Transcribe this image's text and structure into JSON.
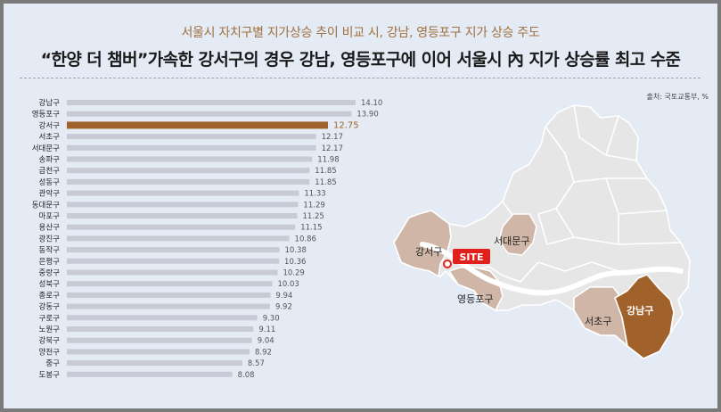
{
  "subtitle": "서울시 자치구별 지가상승 추이 비교 시, 강남, 영등포구 지가 상승 주도",
  "headline": "“한양 더 챔버”가속한 강서구의 경우 강남, 영등포구에 이어 서울시 內 지가 상승률 최고 수준",
  "source": "출처: 국토교통부, %",
  "colors": {
    "bar": "#c8cbd6",
    "highlight": "#a0612a",
    "map_base": "#e6e6e6",
    "map_highlight": "#a0612a",
    "map_tint": "#cfb6a7",
    "site": "#e0201a"
  },
  "chart_data": {
    "type": "bar",
    "orientation": "horizontal",
    "categories": [
      "강남구",
      "영등포구",
      "강서구",
      "서초구",
      "서대문구",
      "송파구",
      "금천구",
      "성동구",
      "관악구",
      "동대문구",
      "마포구",
      "용산구",
      "광진구",
      "동작구",
      "은평구",
      "중랑구",
      "성북구",
      "종로구",
      "강동구",
      "구로구",
      "노원구",
      "강북구",
      "양천구",
      "중구",
      "도봉구"
    ],
    "values": [
      14.1,
      13.9,
      12.75,
      12.17,
      12.17,
      11.98,
      11.85,
      11.85,
      11.33,
      11.29,
      11.25,
      11.15,
      10.86,
      10.38,
      10.36,
      10.29,
      10.03,
      9.94,
      9.92,
      9.3,
      9.11,
      9.04,
      8.92,
      8.57,
      8.08
    ],
    "value_labels": [
      "14.10",
      "13.90",
      "12.75",
      "12.17",
      "12.17",
      "11.98",
      "11.85",
      "11.85",
      "11.33",
      "11.29",
      "11.25",
      "11.15",
      "10.86",
      "10.38",
      "10.36",
      "10.29",
      "10.03",
      "9.94",
      "9.92",
      "9.30",
      "9.11",
      "9.04",
      "8.92",
      "8.57",
      "8.08"
    ],
    "highlight_category": "강서구",
    "xlim": [
      0,
      14.1
    ]
  },
  "map": {
    "labels": {
      "gangseo": "강서구",
      "seodaemun": "서대문구",
      "yeongdeungpo": "영등포구",
      "seocho": "서초구",
      "gangnam": "강남구"
    },
    "site_label": "SITE"
  }
}
